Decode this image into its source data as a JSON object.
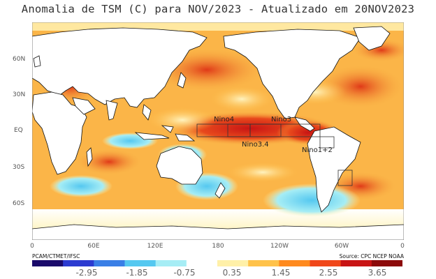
{
  "title": "Anomalia de TSM (C) para NOV/2023 - Atualizado em 20NOV2023",
  "latitude_labels": [
    "60N",
    "30N",
    "EQ",
    "30S",
    "60S"
  ],
  "longitude_labels": [
    "0",
    "60E",
    "120E",
    "180",
    "120W",
    "60W",
    "0"
  ],
  "regions": [
    "Nino4",
    "Nino3",
    "Nino3.4",
    "Nino1+2"
  ],
  "source_left": "PCAM/CTMET/IFSC",
  "source_right": "Source: CPC NCEP NOAA",
  "colorbar": {
    "ticks": [
      "-2.95",
      "-1.85",
      "-0.75",
      "0.35",
      "1.45",
      "2.55",
      "3.65"
    ],
    "colors": [
      "#1a0a6b",
      "#2c3bd0",
      "#3a7fe6",
      "#55c8f0",
      "#a6edf5",
      "#ffffff",
      "#fff0a8",
      "#ffc24a",
      "#ff8a1e",
      "#f0471a",
      "#c81414",
      "#8c0a0a"
    ]
  },
  "colors": {
    "ocean_warm": "#f6a43c",
    "ocean_hot": "#e8491c",
    "ocean_cool": "#9fe3f2",
    "ocean_cold": "#4fb2e8",
    "land": "#ffffff",
    "coast": "#111111"
  }
}
